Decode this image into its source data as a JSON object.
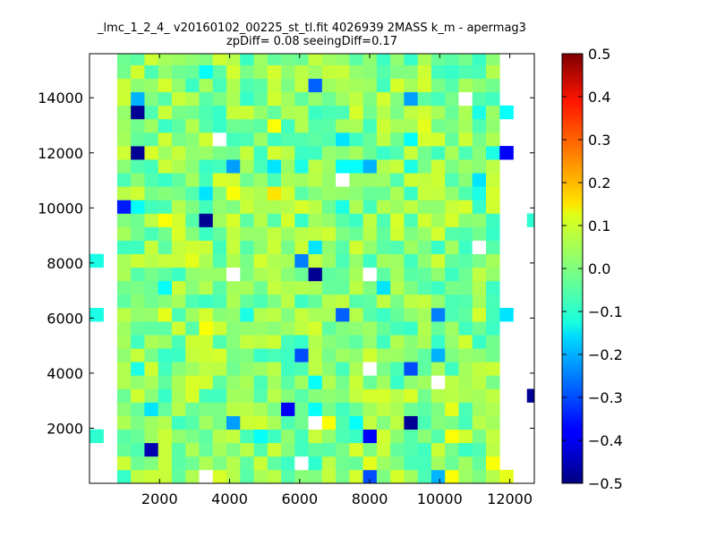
{
  "chart_data": {
    "type": "heatmap",
    "title_line1": "_lmc_1_2_4_ v20160102_00225_st_tl.fit 4026939 2MASS k_m - apermag3",
    "title_line2": "zpDiff= 0.08 seeingDiff=0.17",
    "xlabel": "",
    "ylabel": "",
    "xlim": [
      0,
      12700
    ],
    "ylim": [
      0,
      15600
    ],
    "x_ticks": [
      2000,
      4000,
      6000,
      8000,
      10000,
      12000
    ],
    "y_ticks": [
      2000,
      4000,
      6000,
      8000,
      10000,
      12000,
      14000
    ],
    "x_tick_labels": [
      "2000",
      "4000",
      "6000",
      "8000",
      "10000",
      "12000"
    ],
    "y_tick_labels": [
      "2000",
      "4000",
      "6000",
      "8000",
      "10000",
      "12000",
      "14000"
    ],
    "colorbar": {
      "colormap": "jet",
      "range": [
        -0.5,
        0.5
      ],
      "ticks": [
        0.5,
        0.4,
        0.3,
        0.2,
        0.1,
        0.0,
        -0.1,
        -0.2,
        -0.3,
        -0.4,
        -0.5
      ],
      "tick_labels": [
        "0.5",
        "0.4",
        "0.3",
        "0.2",
        "0.1",
        "0.0",
        "−0.1",
        "−0.2",
        "−0.3",
        "−0.4",
        "−0.5"
      ]
    },
    "grid": false,
    "cell_width": 390,
    "cell_height": 490,
    "notable_cells": [
      {
        "x": 1000,
        "y": 14900,
        "value": 0.08
      },
      {
        "x": 3000,
        "y": 14900,
        "value": -0.12
      },
      {
        "x": 6400,
        "y": 14450,
        "value": -0.28
      },
      {
        "x": 11400,
        "y": 14900,
        "value": 0.05
      },
      {
        "x": 1000,
        "y": 13950,
        "value": -0.2
      },
      {
        "x": 8900,
        "y": 13950,
        "value": -0.22
      },
      {
        "x": 10400,
        "y": 13950,
        "value": null
      },
      {
        "x": 10800,
        "y": 13460,
        "value": -0.1
      },
      {
        "x": 1000,
        "y": 13460,
        "value": -0.48
      },
      {
        "x": 11800,
        "y": 13460,
        "value": -0.12
      },
      {
        "x": 5200,
        "y": 12970,
        "value": 0.12
      },
      {
        "x": 9200,
        "y": 12970,
        "value": 0.1
      },
      {
        "x": 3400,
        "y": 12480,
        "value": null
      },
      {
        "x": 7200,
        "y": 12480,
        "value": -0.15
      },
      {
        "x": 8800,
        "y": 12480,
        "value": -0.12
      },
      {
        "x": 9800,
        "y": 12480,
        "value": 0.08
      },
      {
        "x": 1000,
        "y": 11990,
        "value": -0.48
      },
      {
        "x": 11400,
        "y": 11990,
        "value": -0.1
      },
      {
        "x": 11800,
        "y": 11990,
        "value": -0.38
      },
      {
        "x": 4000,
        "y": 11500,
        "value": -0.22
      },
      {
        "x": 5000,
        "y": 11500,
        "value": -0.15
      },
      {
        "x": 6000,
        "y": 11500,
        "value": -0.1
      },
      {
        "x": 7000,
        "y": 11500,
        "value": -0.12
      },
      {
        "x": 7400,
        "y": 11500,
        "value": -0.12
      },
      {
        "x": 8000,
        "y": 11500,
        "value": -0.2
      },
      {
        "x": 9000,
        "y": 11500,
        "value": -0.1
      },
      {
        "x": 6900,
        "y": 11010,
        "value": null
      },
      {
        "x": 10800,
        "y": 11010,
        "value": -0.15
      },
      {
        "x": 3000,
        "y": 10520,
        "value": -0.15
      },
      {
        "x": 3800,
        "y": 10520,
        "value": 0.12
      },
      {
        "x": 5000,
        "y": 10520,
        "value": 0.15
      },
      {
        "x": 10800,
        "y": 10520,
        "value": -0.1
      },
      {
        "x": 600,
        "y": 10030,
        "value": -0.35
      },
      {
        "x": 1000,
        "y": 10030,
        "value": -0.12
      },
      {
        "x": 7000,
        "y": 10030,
        "value": -0.1
      },
      {
        "x": 11400,
        "y": 10030,
        "value": 0.08
      },
      {
        "x": 1800,
        "y": 9540,
        "value": 0.12
      },
      {
        "x": 3000,
        "y": 9540,
        "value": -0.48
      },
      {
        "x": 9200,
        "y": 9540,
        "value": 0.08
      },
      {
        "x": 12500,
        "y": 9540,
        "value": -0.08
      },
      {
        "x": 10800,
        "y": 8560,
        "value": null
      },
      {
        "x": 6400,
        "y": 8560,
        "value": -0.15
      },
      {
        "x": 200,
        "y": 8070,
        "value": -0.1
      },
      {
        "x": 2600,
        "y": 8070,
        "value": 0.1
      },
      {
        "x": 5800,
        "y": 8070,
        "value": -0.25
      },
      {
        "x": 6200,
        "y": 7580,
        "value": -0.48
      },
      {
        "x": 3800,
        "y": 7580,
        "value": null
      },
      {
        "x": 7800,
        "y": 7580,
        "value": null
      },
      {
        "x": 8200,
        "y": 7090,
        "value": -0.15
      },
      {
        "x": 1800,
        "y": 7090,
        "value": -0.12
      },
      {
        "x": 200,
        "y": 6110,
        "value": -0.1
      },
      {
        "x": 1800,
        "y": 6110,
        "value": 0.1
      },
      {
        "x": 4200,
        "y": 6110,
        "value": -0.1
      },
      {
        "x": 7000,
        "y": 6110,
        "value": -0.28
      },
      {
        "x": 9800,
        "y": 6110,
        "value": -0.25
      },
      {
        "x": 11800,
        "y": 6110,
        "value": -0.15
      },
      {
        "x": 3000,
        "y": 5620,
        "value": 0.12
      },
      {
        "x": 5800,
        "y": 4640,
        "value": -0.3
      },
      {
        "x": 9800,
        "y": 4640,
        "value": -0.2
      },
      {
        "x": 1000,
        "y": 4150,
        "value": -0.1
      },
      {
        "x": 9000,
        "y": 4150,
        "value": -0.3
      },
      {
        "x": 7800,
        "y": 4150,
        "value": null
      },
      {
        "x": 3000,
        "y": 3660,
        "value": 0.08
      },
      {
        "x": 6400,
        "y": 3660,
        "value": -0.12
      },
      {
        "x": 9800,
        "y": 3660,
        "value": null
      },
      {
        "x": 12500,
        "y": 3170,
        "value": -0.48
      },
      {
        "x": 1400,
        "y": 2680,
        "value": -0.15
      },
      {
        "x": 5400,
        "y": 2680,
        "value": -0.38
      },
      {
        "x": 6400,
        "y": 2680,
        "value": -0.12
      },
      {
        "x": 10200,
        "y": 2680,
        "value": 0.1
      },
      {
        "x": 3800,
        "y": 2190,
        "value": -0.22
      },
      {
        "x": 6200,
        "y": 2190,
        "value": null
      },
      {
        "x": 6600,
        "y": 2190,
        "value": 0.12
      },
      {
        "x": 7400,
        "y": 2190,
        "value": -0.12
      },
      {
        "x": 9000,
        "y": 2190,
        "value": -0.48
      },
      {
        "x": 4600,
        "y": 1700,
        "value": -0.12
      },
      {
        "x": 7800,
        "y": 1700,
        "value": -0.38
      },
      {
        "x": 10200,
        "y": 1700,
        "value": 0.12
      },
      {
        "x": 200,
        "y": 1700,
        "value": -0.08
      },
      {
        "x": 1600,
        "y": 1210,
        "value": -0.45
      },
      {
        "x": 5800,
        "y": 720,
        "value": null
      },
      {
        "x": 6400,
        "y": 720,
        "value": -0.08
      },
      {
        "x": 7800,
        "y": 720,
        "value": 0.1
      },
      {
        "x": 11400,
        "y": 720,
        "value": 0.12
      },
      {
        "x": 3000,
        "y": 230,
        "value": null
      },
      {
        "x": 8000,
        "y": 230,
        "value": -0.3
      },
      {
        "x": 9800,
        "y": 230,
        "value": -0.2
      },
      {
        "x": 10200,
        "y": 230,
        "value": 0.12
      },
      {
        "x": 11800,
        "y": 230,
        "value": 0.1
      }
    ]
  }
}
